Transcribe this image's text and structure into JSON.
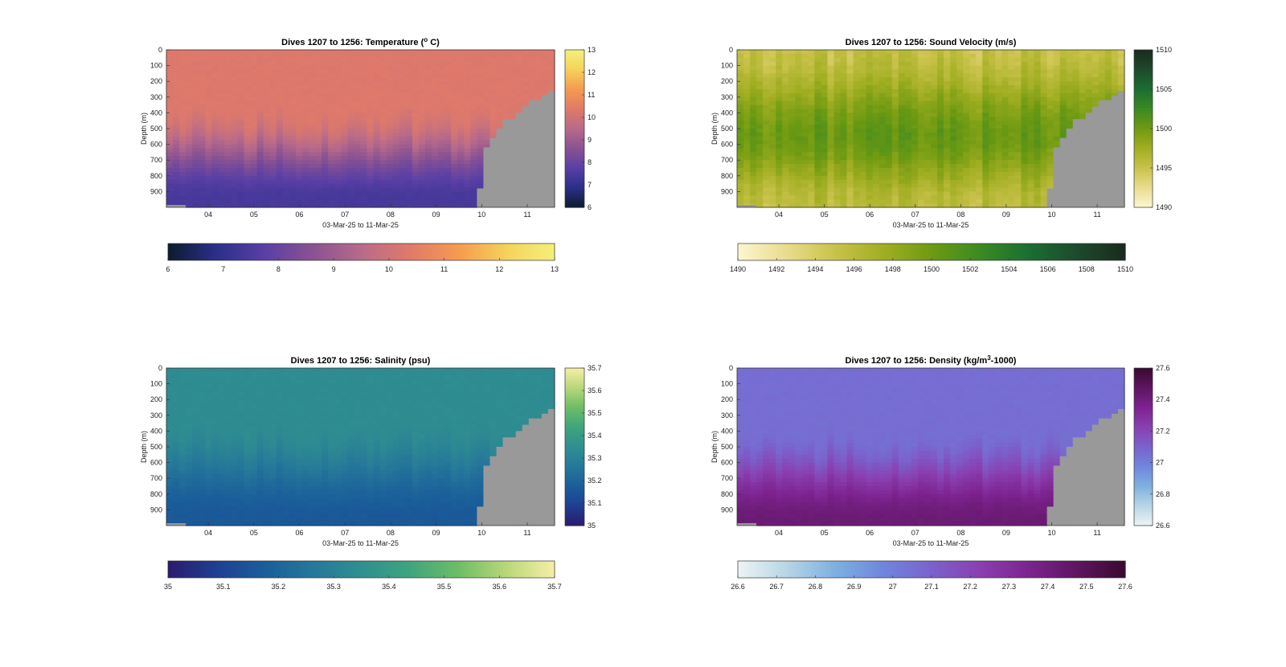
{
  "figure": {
    "background": "#ffffff",
    "seafloor_color": "#999999"
  },
  "chart_data": [
    {
      "type": "heatmap",
      "title_prefix": "Dives 1207 to 1256: Temperature (",
      "title_sup": "o",
      "title_suffix": " C)",
      "xlabel": "03-Mar-25 to 11-Mar-25",
      "ylabel": "Depth (m)",
      "ylim": [
        1000,
        0
      ],
      "xlim": [
        3.08,
        11.6
      ],
      "yticks": [
        0,
        100,
        200,
        300,
        400,
        500,
        600,
        700,
        800,
        900
      ],
      "xticks": [
        "04",
        "05",
        "06",
        "07",
        "08",
        "09",
        "10",
        "11"
      ],
      "xtick_values": [
        4,
        5,
        6,
        7,
        8,
        9,
        10,
        11
      ],
      "colorbar": {
        "min": 6,
        "max": 13,
        "colors": [
          "#0d1b2e",
          "#2b2f8a",
          "#5a3fa5",
          "#8a5292",
          "#b86a8a",
          "#e07a6a",
          "#f59a50",
          "#f5d25a",
          "#f3f07a"
        ],
        "ticks": [
          "6",
          "7",
          "8",
          "9",
          "10",
          "11",
          "12",
          "13"
        ],
        "hticks": [
          "6",
          "7",
          "8",
          "9",
          "10",
          "11",
          "12",
          "13"
        ]
      },
      "profile": {
        "surface": 10.3,
        "deep": 7.4,
        "thermocline_top": 380,
        "thermocline_bottom": 950
      },
      "grid": false
    },
    {
      "type": "heatmap",
      "title_prefix": "Dives 1207 to 1256: Sound Velocity (m/s)",
      "title_sup": "",
      "title_suffix": "",
      "xlabel": "03-Mar-25 to 11-Mar-25",
      "ylabel": "Depth (m)",
      "ylim": [
        1000,
        0
      ],
      "xlim": [
        3.08,
        11.6
      ],
      "yticks": [
        0,
        100,
        200,
        300,
        400,
        500,
        600,
        700,
        800,
        900
      ],
      "xticks": [
        "04",
        "05",
        "06",
        "07",
        "08",
        "09",
        "10",
        "11"
      ],
      "xtick_values": [
        4,
        5,
        6,
        7,
        8,
        9,
        10,
        11
      ],
      "colorbar": {
        "min": 1490,
        "max": 1510,
        "colors": [
          "#fdf6d0",
          "#e9dc8e",
          "#c9c24a",
          "#a1ae22",
          "#6e9a12",
          "#3b8a22",
          "#1b6e32",
          "#1d4a2c",
          "#1a2a1e"
        ],
        "ticks": [
          "1490",
          "1495",
          "1500",
          "1505",
          "1510"
        ],
        "hticks": [
          "1490",
          "1492",
          "1494",
          "1496",
          "1498",
          "1500",
          "1502",
          "1504",
          "1506",
          "1508",
          "1510"
        ]
      },
      "profile": {
        "surface": 1495.3,
        "mid": 1500.2,
        "deep": 1495.8,
        "mid_depth": 550
      },
      "grid": false
    },
    {
      "type": "heatmap",
      "title_prefix": "Dives 1207 to 1256: Salinity (psu)",
      "title_sup": "",
      "title_suffix": "",
      "xlabel": "03-Mar-25 to 11-Mar-25",
      "ylabel": "Depth (m)",
      "ylim": [
        1000,
        0
      ],
      "xlim": [
        3.08,
        11.6
      ],
      "yticks": [
        0,
        100,
        200,
        300,
        400,
        500,
        600,
        700,
        800,
        900
      ],
      "xticks": [
        "04",
        "05",
        "06",
        "07",
        "08",
        "09",
        "10",
        "11"
      ],
      "xtick_values": [
        4,
        5,
        6,
        7,
        8,
        9,
        10,
        11
      ],
      "colorbar": {
        "min": 35,
        "max": 35.7,
        "colors": [
          "#2b1a6e",
          "#1f3f92",
          "#1a5e9a",
          "#26789a",
          "#2f8f90",
          "#3fa47e",
          "#6dbd66",
          "#b9d77a",
          "#f6eea6"
        ],
        "ticks": [
          "35",
          "35.1",
          "35.2",
          "35.3",
          "35.4",
          "35.5",
          "35.6",
          "35.7"
        ],
        "hticks": [
          "35",
          "35.1",
          "35.2",
          "35.3",
          "35.4",
          "35.5",
          "35.6",
          "35.7"
        ]
      },
      "profile": {
        "surface": 35.34,
        "deep": 35.16,
        "thermocline_top": 350,
        "thermocline_bottom": 950
      },
      "grid": false
    },
    {
      "type": "heatmap",
      "title_prefix": "Dives 1207 to 1256: Density (kg/m",
      "title_sup": "3",
      "title_suffix": "-1000)",
      "xlabel": "03-Mar-25 to 11-Mar-25",
      "ylabel": "Depth (m)",
      "ylim": [
        1000,
        0
      ],
      "xlim": [
        3.08,
        11.6
      ],
      "yticks": [
        0,
        100,
        200,
        300,
        400,
        500,
        600,
        700,
        800,
        900
      ],
      "xticks": [
        "04",
        "05",
        "06",
        "07",
        "08",
        "09",
        "10",
        "11"
      ],
      "xtick_values": [
        4,
        5,
        6,
        7,
        8,
        9,
        10,
        11
      ],
      "colorbar": {
        "min": 26.6,
        "max": 27.6,
        "colors": [
          "#eef3f4",
          "#b7d6e6",
          "#7fb0e0",
          "#6f86de",
          "#7a62cc",
          "#8a3fb0",
          "#7d2390",
          "#5e1560",
          "#3a0a2e"
        ],
        "ticks": [
          "26.6",
          "26.8",
          "27",
          "27.2",
          "27.4",
          "27.6"
        ],
        "hticks": [
          "26.6",
          "26.7",
          "26.8",
          "26.9",
          "27",
          "27.1",
          "27.2",
          "27.3",
          "27.4",
          "27.5",
          "27.6"
        ]
      },
      "profile": {
        "surface": 27.06,
        "deep": 27.42,
        "thermocline_top": 420,
        "thermocline_bottom": 960
      },
      "grid": false
    }
  ]
}
